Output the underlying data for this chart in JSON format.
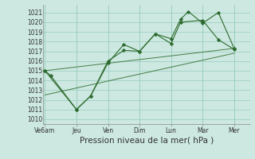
{
  "bg_color": "#cce8e0",
  "grid_color": "#99ccc0",
  "line_color": "#2d6a2d",
  "marker_color": "#2d6a2d",
  "xlabel": "Pression niveau de la mer( hPa )",
  "xlabel_fontsize": 7.5,
  "yticks": [
    1010,
    1011,
    1012,
    1013,
    1014,
    1015,
    1016,
    1017,
    1018,
    1019,
    1020,
    1021
  ],
  "ylim": [
    1009.5,
    1021.8
  ],
  "xtick_labels": [
    "Ve6am",
    "Jeu",
    "Ven",
    "Dim",
    "Lun",
    "Mar",
    "Mer"
  ],
  "xtick_positions": [
    0,
    1,
    2,
    3,
    4,
    5,
    6
  ],
  "xlim": [
    -0.05,
    6.5
  ],
  "series1_x": [
    0.0,
    0.18,
    1.0,
    1.45,
    2.0,
    2.5,
    3.0,
    3.5,
    4.0,
    4.3,
    4.55,
    5.0,
    5.5,
    6.0
  ],
  "series1_y": [
    1015.0,
    1014.5,
    1011.0,
    1012.4,
    1015.8,
    1017.7,
    1017.0,
    1018.8,
    1018.3,
    1020.3,
    1021.1,
    1019.9,
    1021.0,
    1017.3
  ],
  "series2_x": [
    0.0,
    1.0,
    1.45,
    2.0,
    2.5,
    3.0,
    3.5,
    4.0,
    4.3,
    5.0,
    5.5,
    6.0
  ],
  "series2_y": [
    1015.0,
    1011.0,
    1012.4,
    1016.0,
    1017.1,
    1017.0,
    1018.8,
    1017.8,
    1020.0,
    1020.2,
    1018.2,
    1017.2
  ],
  "trend_x": [
    0.0,
    6.0
  ],
  "trend_y": [
    1015.0,
    1017.3
  ],
  "trend2_x": [
    0.0,
    6.0
  ],
  "trend2_y": [
    1012.5,
    1016.8
  ]
}
